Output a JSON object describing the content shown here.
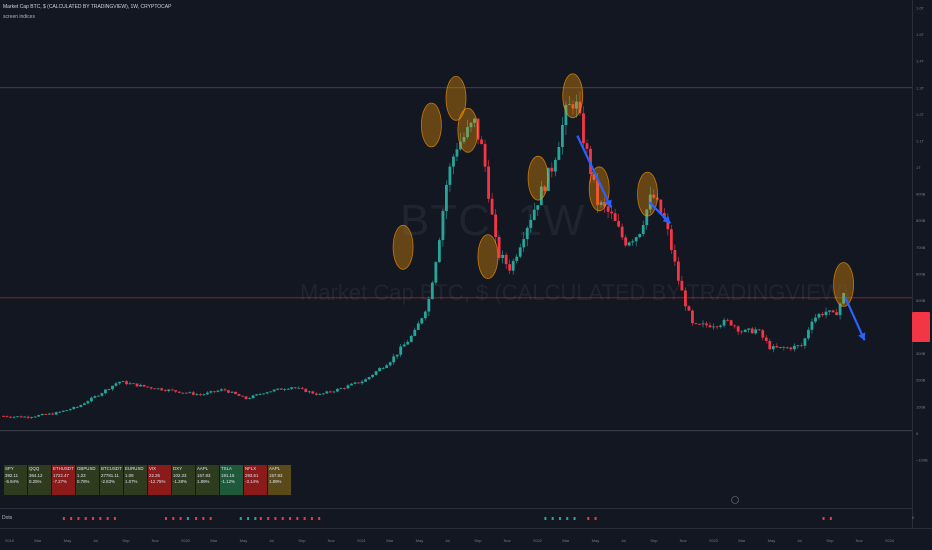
{
  "header": {
    "title": "Market Cap BTC, $ (CALCULATED BY TRADINGVIEW), 1W, CRYPTOCAP",
    "indicator": "screen indices"
  },
  "watermark": {
    "symbol": "BTC, 1W",
    "description": "Market Cap BTC, $ (CALCULATED BY TRADINGVIEW)"
  },
  "colors": {
    "background": "#131722",
    "up": "#26a69a",
    "down": "#f23645",
    "circle_fill": "#ff9800",
    "arrow": "#2962ff",
    "grid": "#1e222d"
  },
  "price_axis": [
    "1.6T",
    "1.5T",
    "1.4T",
    "1.3T",
    "1.2T",
    "1.1T",
    "1T",
    "900B",
    "800B",
    "700B",
    "600B",
    "500B",
    "400B",
    "300B",
    "200B",
    "100B",
    "0",
    "−100B"
  ],
  "time_axis": [
    "2019",
    "Mar",
    "May",
    "Jul",
    "Sep",
    "Nov",
    "2020",
    "Mar",
    "May",
    "Jul",
    "Sep",
    "Nov",
    "2021",
    "Mar",
    "May",
    "Jul",
    "Sep",
    "Nov",
    "2022",
    "Mar",
    "May",
    "Jul",
    "Sep",
    "Nov",
    "2023",
    "Mar",
    "May",
    "Jul",
    "Sep",
    "Nov",
    "2024"
  ],
  "dots_pane": {
    "label": "Dots",
    "zero": "0"
  },
  "screener_table": [
    {
      "symbol": "SPY",
      "price": "392.11",
      "change": "-5.94%",
      "bg": "#2e3b1f"
    },
    {
      "symbol": "QQQ",
      "price": "364.12",
      "change": "0.25%",
      "bg": "#2e3b1f"
    },
    {
      "symbol": "ETHUSDT",
      "price": "1722.47",
      "change": "-7.27%",
      "bg": "#8b1a1a"
    },
    {
      "symbol": "GBPUSD",
      "price": "1.23",
      "change": "0.78%",
      "bg": "#2e3b1f"
    },
    {
      "symbol": "BTCUSDT",
      "price": "27781.11",
      "change": "-2.83%",
      "bg": "#2e3b1f"
    },
    {
      "symbol": "EURUSD",
      "price": "1.08",
      "change": "1.07%",
      "bg": "#2e3b1f"
    },
    {
      "symbol": "VIX",
      "price": "22.26",
      "change": "-12.75%",
      "bg": "#8b1a1a"
    },
    {
      "symbol": "DXY",
      "price": "102.33",
      "change": "-1.28%",
      "bg": "#2e3b1f"
    },
    {
      "symbol": "AAPL",
      "price": "157.83",
      "change": "1.89%",
      "bg": "#2e3b1f"
    },
    {
      "symbol": "TSLA",
      "price": "191.15",
      "change": "-1.12%",
      "bg": "#1e5a3a"
    },
    {
      "symbol": "NFLX",
      "price": "293.51",
      "change": "-3.14%",
      "bg": "#8b1a1a"
    },
    {
      "symbol": "AAPL",
      "price": "157.83",
      "change": "1.89%",
      "bg": "#5a4a1a"
    }
  ],
  "chart_data": {
    "type": "candlestick",
    "title": "Market Cap BTC, $ (CALCULATED BY TRADINGVIEW), 1W, CRYPTOCAP",
    "y_unit": "USD (billions)",
    "ylim": [
      -100,
      1600
    ],
    "x_range": [
      "2019-01",
      "2024-01"
    ],
    "horizontal_lines": [
      {
        "value": 1300,
        "color": "#4a4f5c"
      },
      {
        "value": 510,
        "color": "#8b2a2a"
      },
      {
        "value": 10,
        "color": "#4a4f5c"
      }
    ],
    "last_price_marker": {
      "value": 510,
      "color": "#f23645"
    },
    "trend_points": [
      {
        "t": 0.0,
        "v": 65
      },
      {
        "t": 0.03,
        "v": 62
      },
      {
        "t": 0.06,
        "v": 75
      },
      {
        "t": 0.085,
        "v": 100
      },
      {
        "t": 0.11,
        "v": 150
      },
      {
        "t": 0.13,
        "v": 195
      },
      {
        "t": 0.16,
        "v": 175
      },
      {
        "t": 0.19,
        "v": 160
      },
      {
        "t": 0.22,
        "v": 145
      },
      {
        "t": 0.245,
        "v": 165
      },
      {
        "t": 0.27,
        "v": 130
      },
      {
        "t": 0.29,
        "v": 155
      },
      {
        "t": 0.32,
        "v": 175
      },
      {
        "t": 0.35,
        "v": 145
      },
      {
        "t": 0.375,
        "v": 170
      },
      {
        "t": 0.4,
        "v": 200
      },
      {
        "t": 0.43,
        "v": 280
      },
      {
        "t": 0.455,
        "v": 380
      },
      {
        "t": 0.47,
        "v": 500
      },
      {
        "t": 0.48,
        "v": 700
      },
      {
        "t": 0.49,
        "v": 950
      },
      {
        "t": 0.5,
        "v": 1080
      },
      {
        "t": 0.51,
        "v": 1120
      },
      {
        "t": 0.52,
        "v": 1170
      },
      {
        "t": 0.53,
        "v": 1050
      },
      {
        "t": 0.545,
        "v": 680
      },
      {
        "t": 0.56,
        "v": 620
      },
      {
        "t": 0.575,
        "v": 760
      },
      {
        "t": 0.59,
        "v": 880
      },
      {
        "t": 0.605,
        "v": 1000
      },
      {
        "t": 0.62,
        "v": 1200
      },
      {
        "t": 0.63,
        "v": 1260
      },
      {
        "t": 0.64,
        "v": 1110
      },
      {
        "t": 0.655,
        "v": 870
      },
      {
        "t": 0.67,
        "v": 820
      },
      {
        "t": 0.685,
        "v": 720
      },
      {
        "t": 0.7,
        "v": 750
      },
      {
        "t": 0.715,
        "v": 900
      },
      {
        "t": 0.73,
        "v": 790
      },
      {
        "t": 0.745,
        "v": 560
      },
      {
        "t": 0.76,
        "v": 400
      },
      {
        "t": 0.78,
        "v": 410
      },
      {
        "t": 0.8,
        "v": 420
      },
      {
        "t": 0.815,
        "v": 380
      },
      {
        "t": 0.83,
        "v": 390
      },
      {
        "t": 0.845,
        "v": 320
      },
      {
        "t": 0.86,
        "v": 320
      },
      {
        "t": 0.88,
        "v": 330
      },
      {
        "t": 0.89,
        "v": 430
      },
      {
        "t": 0.905,
        "v": 460
      },
      {
        "t": 0.915,
        "v": 440
      },
      {
        "t": 0.925,
        "v": 520
      }
    ],
    "highlight_circles": [
      {
        "t": 0.442,
        "v": 700
      },
      {
        "t": 0.473,
        "v": 1160
      },
      {
        "t": 0.5,
        "v": 1260
      },
      {
        "t": 0.513,
        "v": 1140
      },
      {
        "t": 0.535,
        "v": 665
      },
      {
        "t": 0.59,
        "v": 960
      },
      {
        "t": 0.628,
        "v": 1270
      },
      {
        "t": 0.657,
        "v": 920
      },
      {
        "t": 0.71,
        "v": 900
      },
      {
        "t": 0.925,
        "v": 560
      }
    ],
    "arrows": [
      {
        "t1": 0.633,
        "v1": 1120,
        "t2": 0.67,
        "v2": 850
      },
      {
        "t1": 0.712,
        "v1": 870,
        "t2": 0.735,
        "v2": 790
      },
      {
        "t1": 0.927,
        "v1": 510,
        "t2": 0.948,
        "v2": 350
      }
    ],
    "dots_red": [
      0.07,
      0.078,
      0.086,
      0.094,
      0.102,
      0.11,
      0.118,
      0.126,
      0.182,
      0.19,
      0.198,
      0.215,
      0.223,
      0.231,
      0.286,
      0.294,
      0.302,
      0.31,
      0.318,
      0.326,
      0.334,
      0.342,
      0.35,
      0.645,
      0.653,
      0.903,
      0.911
    ],
    "dots_green": [
      0.206,
      0.264,
      0.272,
      0.28,
      0.598,
      0.606,
      0.614,
      0.622,
      0.63
    ]
  }
}
